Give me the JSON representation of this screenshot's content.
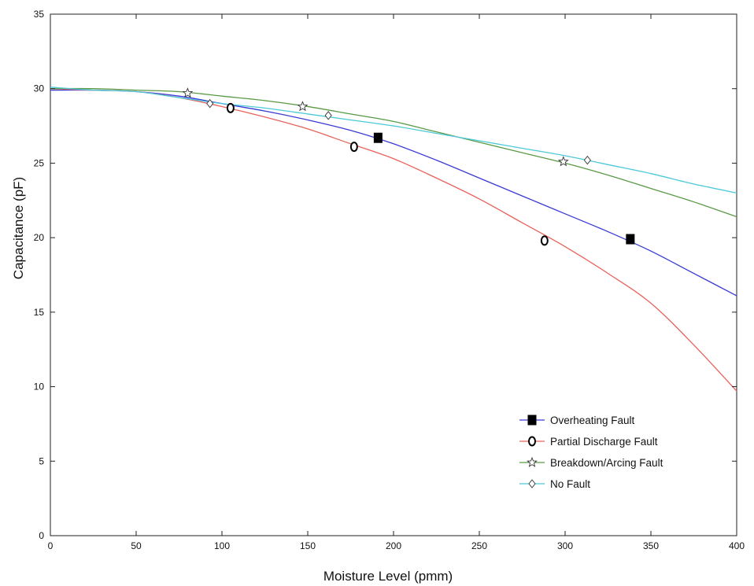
{
  "chart_data": {
    "type": "line",
    "title": "",
    "xlabel": "Moisture Level (pmm)",
    "ylabel": "Capacitance (pF)",
    "xlim": [
      0,
      400
    ],
    "ylim": [
      0,
      35
    ],
    "x_ticks": [
      0,
      50,
      100,
      150,
      200,
      250,
      300,
      350,
      400
    ],
    "y_ticks": [
      0,
      5,
      10,
      15,
      20,
      25,
      30,
      35
    ],
    "grid": false,
    "legend_position": "bottom-right",
    "series": [
      {
        "name": "Overheating Fault",
        "color": "#3a3ad6",
        "marker": "filled-square",
        "curve_x": [
          0,
          25,
          50,
          75,
          100,
          125,
          150,
          175,
          200,
          225,
          250,
          275,
          300,
          325,
          350,
          375,
          400
        ],
        "curve_y": [
          29.9,
          29.9,
          29.8,
          29.5,
          29.0,
          28.5,
          27.9,
          27.2,
          26.3,
          25.2,
          24.0,
          22.8,
          21.6,
          20.4,
          19.1,
          17.6,
          16.1
        ],
        "points_x": [
          191,
          338
        ],
        "points_y": [
          26.7,
          19.9
        ]
      },
      {
        "name": "Partial Discharge Fault",
        "color": "#e8625b",
        "marker": "open-circle",
        "curve_x": [
          0,
          25,
          50,
          75,
          100,
          125,
          150,
          175,
          200,
          225,
          250,
          275,
          300,
          325,
          350,
          375,
          400
        ],
        "curve_y": [
          30.0,
          29.9,
          29.8,
          29.4,
          28.8,
          28.1,
          27.3,
          26.3,
          25.3,
          24.0,
          22.6,
          21.0,
          19.4,
          17.6,
          15.6,
          12.8,
          9.7
        ],
        "points_x": [
          105,
          177,
          288
        ],
        "points_y": [
          28.7,
          26.1,
          19.8
        ]
      },
      {
        "name": "Breakdown/Arcing Fault",
        "color": "#5a9a45",
        "marker": "open-star",
        "curve_x": [
          0,
          25,
          50,
          75,
          100,
          125,
          150,
          175,
          200,
          225,
          250,
          275,
          300,
          325,
          350,
          375,
          400
        ],
        "curve_y": [
          30.0,
          30.0,
          29.9,
          29.8,
          29.5,
          29.2,
          28.8,
          28.3,
          27.8,
          27.1,
          26.4,
          25.7,
          25.0,
          24.2,
          23.3,
          22.4,
          21.4
        ],
        "points_x": [
          80,
          147,
          299
        ],
        "points_y": [
          29.7,
          28.8,
          25.1
        ]
      },
      {
        "name": "No Fault",
        "color": "#4cc9d8",
        "marker": "open-diamond",
        "curve_x": [
          0,
          25,
          50,
          75,
          100,
          125,
          150,
          175,
          200,
          225,
          250,
          275,
          300,
          325,
          350,
          375,
          400
        ],
        "curve_y": [
          30.1,
          29.9,
          29.8,
          29.4,
          29.0,
          28.7,
          28.3,
          27.9,
          27.5,
          27.0,
          26.5,
          26.0,
          25.5,
          24.9,
          24.3,
          23.6,
          23.0
        ],
        "points_x": [
          93,
          162,
          313
        ],
        "points_y": [
          29.0,
          28.2,
          25.2
        ]
      }
    ]
  }
}
